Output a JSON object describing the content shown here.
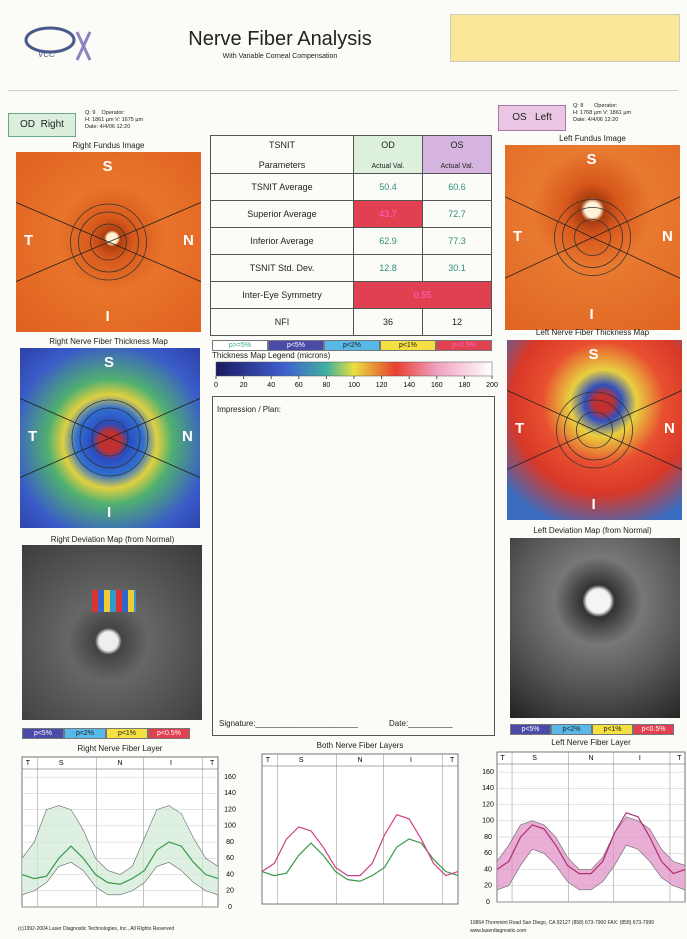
{
  "header": {
    "logo": "VCC",
    "title": "Nerve Fiber Analysis",
    "subtitle": "With Variable Corneal Compensation"
  },
  "od": {
    "eye": "OD",
    "side": "Right",
    "q": "Q: 9",
    "operator": "Operator:",
    "hv": "H: 1861 µm  V: 1675 µm",
    "date": "Date: 4/4/06 12:20"
  },
  "os": {
    "eye": "OS",
    "side": "Left",
    "q": "Q: 8",
    "operator": "Operator:",
    "hv": "H: 1768 µm  V: 1861 µm",
    "date": "Date: 4/4/06 12:20"
  },
  "captions": {
    "right_fundus": "Right Fundus Image",
    "left_fundus": "Left Fundus Image",
    "right_thickness": "Right Nerve Fiber Thickness Map",
    "left_thickness": "Left Nerve Fiber Thickness Map",
    "right_deviation": "Right Deviation Map (from Normal)",
    "left_deviation": "Left Deviation Map (from Normal)"
  },
  "quadrants": [
    "S",
    "N",
    "I",
    "T"
  ],
  "table": {
    "header": [
      "TSNIT",
      "Parameters",
      "OD",
      "OS"
    ],
    "subheader": [
      "Actual Val.",
      "Actual Val."
    ],
    "rows": [
      [
        "TSNIT Average",
        50.4,
        60.6
      ],
      [
        "Superior Average",
        43.7,
        72.7
      ],
      [
        "Inferior Average",
        62.9,
        77.3
      ],
      [
        "TSNIT Std. Dev.",
        12.8,
        30.1
      ],
      [
        "Inter-Eye Symmetry",
        0.55
      ],
      [
        "NFI",
        36,
        12
      ]
    ]
  },
  "significance_legend": [
    "p>=5%",
    "p<5%",
    "p<2%",
    "p<1%",
    "p<0.5%"
  ],
  "thickness_legend": {
    "title": "Thickness Map Legend (microns)",
    "ticks": [
      0,
      20,
      40,
      60,
      80,
      100,
      120,
      140,
      160,
      180,
      200
    ]
  },
  "impression": "Impression / Plan:",
  "signature": "Signature:_______________________",
  "date": "Date:__________",
  "charts": [
    {
      "title": "Right Nerve Fiber Layer",
      "x_labels": [
        "T",
        "S",
        "N",
        "I",
        "T"
      ],
      "ylim": [
        0,
        170
      ],
      "yticks": [
        0,
        20,
        40,
        60,
        80,
        100,
        120,
        140,
        160
      ],
      "band": {
        "color": "#cfe9d6",
        "lower": [
          15,
          20,
          30,
          50,
          55,
          45,
          25,
          15,
          15,
          20,
          30,
          50,
          55,
          45,
          30,
          20,
          15
        ],
        "upper": [
          60,
          80,
          120,
          125,
          120,
          95,
          60,
          45,
          40,
          50,
          85,
          120,
          125,
          115,
          85,
          60,
          50
        ]
      },
      "series": [
        {
          "color": "#3a9a4a",
          "values": [
            40,
            35,
            38,
            60,
            75,
            60,
            40,
            30,
            28,
            35,
            45,
            70,
            80,
            75,
            55,
            40,
            35
          ]
        }
      ]
    },
    {
      "title": "Both Nerve Fiber Layers",
      "x_labels": [
        "T",
        "S",
        "N",
        "I",
        "T"
      ],
      "ylim": [
        0,
        170
      ],
      "series": [
        {
          "color": "#3a9a4a",
          "values": [
            40,
            35,
            38,
            60,
            75,
            60,
            40,
            30,
            28,
            35,
            45,
            70,
            80,
            75,
            55,
            40,
            35
          ]
        },
        {
          "color": "#d0408a",
          "values": [
            40,
            50,
            80,
            95,
            90,
            70,
            45,
            35,
            35,
            50,
            85,
            110,
            105,
            80,
            50,
            35,
            40
          ]
        }
      ]
    },
    {
      "title": "Left Nerve Fiber Layer",
      "x_labels": [
        "T",
        "S",
        "N",
        "I",
        "T"
      ],
      "ylim": [
        0,
        170
      ],
      "yticks": [
        0,
        20,
        40,
        60,
        80,
        100,
        120,
        140,
        160
      ],
      "band": {
        "color": "#e08cc4",
        "lower": [
          15,
          20,
          45,
          65,
          60,
          45,
          25,
          15,
          15,
          25,
          45,
          70,
          65,
          50,
          30,
          20,
          15
        ],
        "upper": [
          50,
          70,
          95,
          100,
          95,
          80,
          55,
          40,
          40,
          55,
          85,
          105,
          100,
          90,
          65,
          50,
          45
        ]
      },
      "series": [
        {
          "color": "#b0306e",
          "values": [
            40,
            50,
            80,
            95,
            90,
            70,
            45,
            35,
            35,
            50,
            85,
            110,
            105,
            80,
            50,
            35,
            40
          ]
        }
      ]
    }
  ],
  "footer": {
    "copyright": "(c)1992-2004 Laser Diagnostic Technologies, Inc., All Rights Reserved",
    "address": "10864 Thornmint Road  San Diego, CA 92127  (858) 673-7900  FAX: (858) 673-7999",
    "web": "www.laserdiagnostic.com"
  }
}
